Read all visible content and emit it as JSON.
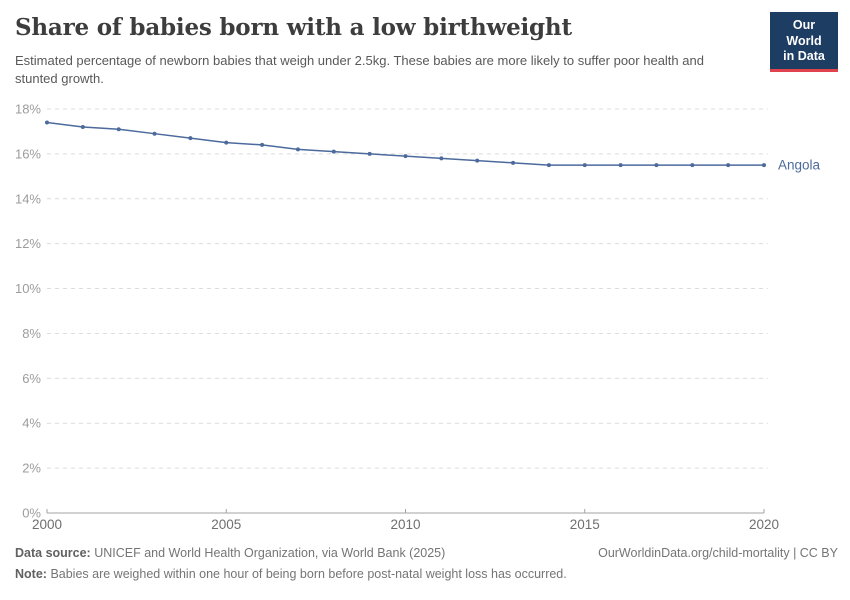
{
  "header": {
    "title": "Share of babies born with a low birthweight",
    "subtitle": "Estimated percentage of newborn babies that weigh under 2.5kg. These babies are more likely to suffer poor health and stunted growth.",
    "logo": {
      "line1": "Our World",
      "line2": "in Data"
    }
  },
  "chart_data": {
    "type": "line",
    "title": "Share of babies born with a low birthweight",
    "x": [
      2000,
      2001,
      2002,
      2003,
      2004,
      2005,
      2006,
      2007,
      2008,
      2009,
      2010,
      2011,
      2012,
      2013,
      2014,
      2015,
      2016,
      2017,
      2018,
      2019,
      2020
    ],
    "series": [
      {
        "name": "Angola",
        "color": "#4c6a9c",
        "values": [
          17.4,
          17.2,
          17.1,
          16.9,
          16.7,
          16.5,
          16.4,
          16.2,
          16.1,
          16.0,
          15.9,
          15.8,
          15.7,
          15.6,
          15.5,
          15.5,
          15.5,
          15.5,
          15.5,
          15.5,
          15.5
        ]
      }
    ],
    "xlabel": "",
    "ylabel": "",
    "ylim": [
      0,
      18
    ],
    "xlim": [
      2000,
      2020
    ],
    "yticks": [
      0,
      2,
      4,
      6,
      8,
      10,
      12,
      14,
      16,
      18
    ],
    "ytick_suffix": "%",
    "xticks": [
      2000,
      2005,
      2010,
      2015,
      2020
    ],
    "grid": "horizontal-dashed",
    "legend_position": "end-of-line-label",
    "end_label": "Angola",
    "marker": "dot"
  },
  "colors": {
    "grid": "#dcdcdc",
    "axis": "#a3a3a3",
    "ytick_label": "#9c9c9c",
    "xtick_label": "#6f6f6f",
    "series": "#4c6a9c",
    "logo_bg": "#1d3d63",
    "logo_stripe": "#e0434d"
  },
  "footer": {
    "datasource_label": "Data source:",
    "datasource_text": "UNICEF and World Health Organization, via World Bank (2025)",
    "note_label": "Note:",
    "note_text": "Babies are weighed within one hour of being born before post-natal weight loss has occurred.",
    "link": "OurWorldinData.org/child-mortality | CC BY"
  }
}
